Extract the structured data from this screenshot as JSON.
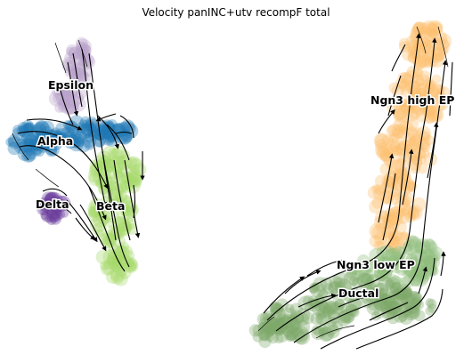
{
  "chart_data": {
    "type": "scatter",
    "title": "Velocity panINC+utv recompF total",
    "grid": false,
    "axes_visible": false,
    "series": [
      {
        "name": "Epsilon",
        "color": "#b9a3cc"
      },
      {
        "name": "Alpha",
        "color": "#1f77b4"
      },
      {
        "name": "Delta",
        "color": "#6a3d9a"
      },
      {
        "name": "Beta",
        "color": "#a6d96a"
      },
      {
        "name": "Ngn3 high EP",
        "color": "#fdbf6f"
      },
      {
        "name": "Ngn3 low EP",
        "color": "#8fbc7a"
      },
      {
        "name": "Ductal",
        "color": "#7fa86b"
      }
    ],
    "overlay": "velocity-streamlines"
  }
}
